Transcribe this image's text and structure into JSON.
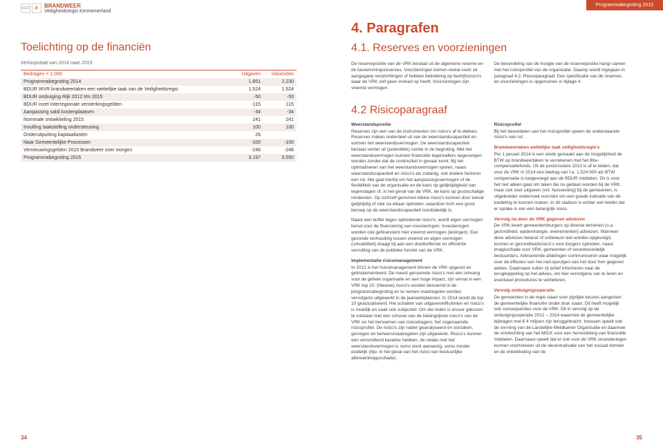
{
  "colors": {
    "accent": "#c94a2e",
    "row_alt": "#f3ece8",
    "text": "#333"
  },
  "header": {
    "logo_primary": "BRANDWEER",
    "logo_secondary": "Veiligheidsregio Kennemerland",
    "right_tab": "Programmabegroting 2015"
  },
  "left": {
    "title": "Toelichting op de financiën",
    "intro": "Verloopstaat van 2014 naar 2015:",
    "table": {
      "columns": [
        "Bedragen × 1.000",
        "Uitgaven",
        "Inkomsten"
      ],
      "rows": [
        [
          "Programmabegroting 2014",
          "1.851",
          "2.230"
        ],
        [
          "BDUR WVR brandweertaken een wettelijke taak van de Veiligheidsregio",
          "1.524",
          "1.524"
        ],
        [
          "BDUR ombuiging Rijk 2012 t/m 2015",
          "-50",
          "-50"
        ],
        [
          "BDUR inzet Interregionale versterkingsgelden",
          "-115",
          "-115"
        ],
        [
          "Aanpassing saldi kostenplaatsen",
          "-34",
          "-34"
        ],
        [
          "Nominale ontwikkeling 2015",
          "241",
          "241"
        ],
        [
          "Invulling taakstelling ondersteuning",
          "100",
          "100"
        ],
        [
          "Onderuitputting kapitaallasten",
          "26",
          ""
        ],
        [
          "Naar Gemeentelijke Processen",
          "-100",
          "-100"
        ],
        [
          "Vernieuwingsgelden 2015 Brandweer over morgen",
          "-246",
          "-246"
        ],
        [
          "Programmabegroting 2015",
          "3.197",
          "3.550"
        ]
      ]
    },
    "pagenum": "34"
  },
  "right": {
    "chapter": "4.  Paragrafen",
    "section41": "4.1.  Reserves en voorzieningen",
    "col41_left": "De reservepositie van de VRK bestaat uit de algemene reserve en de bestemmingsreserves. Voorzieningen komen veelal voort uit aangegane verplichtingen of hebben betrekking op bedrijfsrisico's waar de VRK zelf geen invloed op heeft. Voorzieningen zijn vreemd vermogen.",
    "col41_right": "De beoordeling van de hoogte van de reservepositie hangt samen met het risicoprofiel van de organisatie. Daarop wordt ingegaan in paragraaf 4.2, Risicoparagraaf. Een specificatie van de reserves en voorzieningen is opgenomen in bijlage 4.",
    "section42": "4.2  Risicoparagraaf",
    "col42_left": {
      "h1": "Weerstandspositie",
      "p1": "Reserves zijn een van de instrumenten om risico's af te dekken. Reserves maken onderdeel uit van de weerstandscapaciteit en vormen het weerstandsvermogen. De weerstandscapaciteit bestaat verder uit (potentiële) ruimte in de begroting. Met het weerstandsvermogen kunnen financiële tegenvallers opgevangen worden zonder dat de continuïteit in gevaar komt. Bij het optimaliseren van het weerstandsvermogen spelen, naast weerstandscapaciteit en risico's als zodanig, ook andere factoren een rol. Het gaat hierbij om het aanpassingsvermogen of de flexibiliteit van de organisatie en de kans op gelijktijdigheid van tegenslagen of, in het geval van de VRK, de kans op grootschalige incidenten. Op zichzelf genomen kleine risico's kunnen door toeval gelijktijdig of vlak na elkaar optreden, waardoor toch een groot beroep op de weerstandscapaciteit noodzakelijk is.",
      "p2": "Naast een buffer tegen optredende risico's, wordt eigen vermogen benut voor de financiering van investeringen. Investeringen worden ook gefinancierd met vreemd vermogen (leningen). Een gezonde verhouding tussen vreemd en eigen vermogen (solvabiliteit) draagt bij aan een doeltreffende en efficiënte vervulling van de publieke functie van de VRK.",
      "h2": "Implementatie risicomanagement",
      "p3": "In 2012 is het risicomanagement binnen de VRK opgezet en geïmplementeerd. De meest genoemde risico's met een omvang voor de gehele organisatie en een hoge impact, zijn vervat in een VRK top 10. (Nieuwe) risico's worden benoemd in de programmabegroting en te nemen maatregelen worden vervolgens uitgewerkt in de jaarwerkplannen. In 2014 wordt de top 10 geactualiseerd. Het schatten van uitgaven/efficiënten en risico's is moeilijk en vaak ook subjectief. Om die reden is ervoor gekozen te volstaan met een schouw van de belangrijkste risico's van de VRK en het benoemen van risicodragers; het zogenaamde risicoprofiel. De risico's zijn nader geanalyseerd en oorzaken, gevolgen en beheersmaatregelen zijn uitgewerkt. Risico's kunnen een verschillend karakter hebben, de relatie met het weerstandsvermogen is soms sterk aanwezig, soms minder duidelijk (bijv. in het geval van het risico van bestuurlijke afbreuk/imagoschade)."
    },
    "col42_right": {
      "h1": "Risicoprofiel",
      "p1": "Bij het beoordelen van het risicoprofiel spelen de onderstaande risico's een rol.",
      "h2": "Brandweertaken wettelijke taak veiligheidsregio's",
      "p2": "Per 1 januari 2014 is een einde gemaakt aan de mogelijkheid de BTW op brandweertaken te verrekenen met het Btw-compensatiefonds. Uit de junicirculaire 2013 is af te leiden, dat voor de VRK in 2014 een bedrag van f.a. 1.524.000 als BTW compensatie is toegevoegd aan de BDUR middelen. Dit is voor het niet alleen gaat om taken die nu gedaan worden bij de VRK, maar ook over uitgaven (vnl. huisvesting) bij de gemeenten, is uitgebreider onderzoek voorzien om een goede indicatie van de toedeling te kunnen maken. In dit stadium is echter wel helder dat er sprake is van een belangrijk risico.",
      "h3": "Vervolg na door de VRK gegeven adviezen",
      "p3": "De VRK levert gemeenten/burgers op diverse terreinen (o.a. gezondheid, epidemiologie, evenementen) adviezen. Wanneer deze adviezen bewust of onbewust niet worden opgevolgd, kunnen er gezondheidsrisico's voor burgers optreden, naast imagoschade voor VRK, gemeenten of verantwoordelijk bestuurders. Adviserende afdelingen communiceren waar mogelijk over de effecten van het niet-opvolgen van het door hen gegeven advies. Daarnaast zullen zij actief informeren naar de terugkoppeling op het advies, om hier vervolgens van te leren en eventueel procedures te verbeteren.",
      "h4": "Vervolg ombuigingsoperatie",
      "p4": "De gemeenten in de regio staan voor pijnlijke keuzes aangezien de gemeentelijke financiën onder druk staan. Dit heeft mogelijk ook consequenties voor de VRK. Dit in vervolg op de ombuigingsoperatie 2012 – 2014 waarmee de gemeentelijke bijdragen met € 4 miljoen zijn teruggebracht. Intussen speelt ook de vorming van de Landelijke Meldkamer Organisatie en daarmee de ontvlechting van het MICK voor een herverdeling van financiële middelen. Daarnaast speelt dat er ook voor de VRK veranderingen kunnen voortvloeien uit de decentralisatie van het sociaal domein en de ontwikkeling van de"
    },
    "pagenum": "35"
  }
}
